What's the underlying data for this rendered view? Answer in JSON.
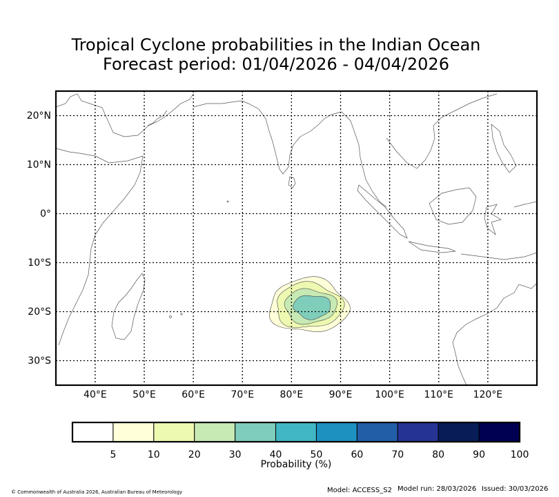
{
  "title": {
    "line1": "Tropical Cyclone probabilities in the Indian Ocean",
    "line2": "Forecast period: 01/04/2026 - 04/04/2026"
  },
  "map": {
    "lon_range": [
      32,
      130
    ],
    "lat_range": [
      -35,
      25
    ],
    "lon_ticks": [
      {
        "value": 40,
        "label": "40°E"
      },
      {
        "value": 50,
        "label": "50°E"
      },
      {
        "value": 60,
        "label": "60°E"
      },
      {
        "value": 70,
        "label": "70°E"
      },
      {
        "value": 80,
        "label": "80°E"
      },
      {
        "value": 90,
        "label": "90°E"
      },
      {
        "value": 100,
        "label": "100°E"
      },
      {
        "value": 110,
        "label": "110°E"
      },
      {
        "value": 120,
        "label": "120°E"
      }
    ],
    "lat_ticks": [
      {
        "value": 20,
        "label": "20°N"
      },
      {
        "value": 10,
        "label": "10°N"
      },
      {
        "value": 0,
        "label": "0°"
      },
      {
        "value": -10,
        "label": "10°S"
      },
      {
        "value": -20,
        "label": "20°S"
      },
      {
        "value": -30,
        "label": "30°S"
      }
    ],
    "gridlines": "dotted",
    "coastline_color": "#555555",
    "probability_contours": [
      {
        "level": 5,
        "color": "#ffffd9",
        "center": [
          83.5,
          -18.8
        ],
        "radii": [
          8.0,
          5.5
        ]
      },
      {
        "level": 10,
        "color": "#edf8b1",
        "center": [
          83.5,
          -18.8
        ],
        "radii": [
          6.8,
          4.6
        ]
      },
      {
        "level": 20,
        "color": "#c7e9b4",
        "center": [
          83.8,
          -18.9
        ],
        "radii": [
          5.3,
          3.5
        ]
      },
      {
        "level": 30,
        "color": "#7fcdbb",
        "center": [
          84.2,
          -19.0
        ],
        "radii": [
          3.8,
          2.4
        ]
      }
    ]
  },
  "colorbar": {
    "colors": [
      "#ffffff",
      "#ffffd9",
      "#edf8b1",
      "#c7e9b4",
      "#7fcdbb",
      "#41b6c4",
      "#1d91c0",
      "#225ea8",
      "#253494",
      "#081d58",
      "#000050"
    ],
    "ticks": [
      "5",
      "10",
      "20",
      "30",
      "40",
      "50",
      "60",
      "70",
      "80",
      "90",
      "100"
    ],
    "label": "Probability (%)"
  },
  "footer": {
    "copyright": "© Commonwealth of Australia 2026, Australian Bureau of Meteorology",
    "model": "Model: ACCESS_S2",
    "model_run": "Model run: 28/03/2026",
    "issued": "Issued: 30/03/2026"
  }
}
